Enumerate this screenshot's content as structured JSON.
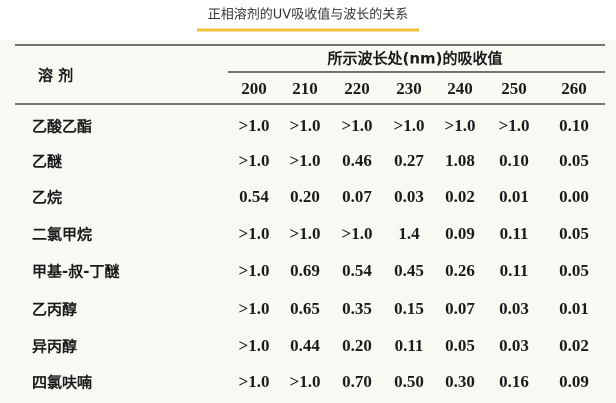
{
  "header": {
    "title": "正相溶剂的UV吸收值与波长的关系"
  },
  "table": {
    "solvent_header": "溶 剂",
    "group_header": "所示波长处(nm)的吸收值",
    "columns": [
      "200",
      "210",
      "220",
      "230",
      "240",
      "250",
      "260"
    ],
    "rows": [
      {
        "name": "乙酸乙酯",
        "cells": [
          ">1.0",
          ">1.0",
          ">1.0",
          ">1.0",
          ">1.0",
          ">1.0",
          "0.10"
        ]
      },
      {
        "name": "乙醚",
        "cells": [
          ">1.0",
          ">1.0",
          "0.46",
          "0.27",
          "1.08",
          "0.10",
          "0.05"
        ]
      },
      {
        "name": "乙烷",
        "cells": [
          "0.54",
          "0.20",
          "0.07",
          "0.03",
          "0.02",
          "0.01",
          "0.00"
        ]
      },
      {
        "name": "二氯甲烷",
        "cells": [
          ">1.0",
          ">1.0",
          ">1.0",
          "1.4",
          "0.09",
          "0.11",
          "0.05"
        ]
      },
      {
        "name": "甲基-叔-丁醚",
        "cells": [
          ">1.0",
          "0.69",
          "0.54",
          "0.45",
          "0.26",
          "0.11",
          "0.05"
        ]
      },
      {
        "name": "乙丙醇",
        "cells": [
          ">1.0",
          "0.65",
          "0.35",
          "0.15",
          "0.07",
          "0.03",
          "0.01"
        ]
      },
      {
        "name": "异丙醇",
        "cells": [
          ">1.0",
          "0.44",
          "0.20",
          "0.11",
          "0.05",
          "0.03",
          "0.02"
        ]
      },
      {
        "name": "四氯呋喃",
        "cells": [
          ">1.0",
          ">1.0",
          "0.70",
          "0.50",
          "0.30",
          "0.16",
          "0.09"
        ]
      }
    ]
  }
}
